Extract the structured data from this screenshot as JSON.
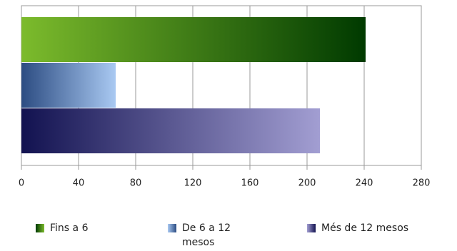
{
  "chart_data": {
    "type": "bar",
    "orientation": "horizontal",
    "categories": [
      null
    ],
    "series": [
      {
        "name": "Fins a 6",
        "color": [
          "#7cbb2c",
          "#003a00"
        ],
        "values": [
          241
        ]
      },
      {
        "name": "De 6 a 12 mesos",
        "color": [
          "#2c4c82",
          "#a9c9f2"
        ],
        "values": [
          66
        ]
      },
      {
        "name": "Més de 12 mesos",
        "color": [
          "#121250",
          "#a29ed2"
        ],
        "values": [
          209
        ]
      }
    ],
    "xlim": [
      0,
      280
    ],
    "xticks": [
      0,
      40,
      80,
      120,
      160,
      200,
      240,
      280
    ],
    "grid": true,
    "legend": "bottom"
  }
}
